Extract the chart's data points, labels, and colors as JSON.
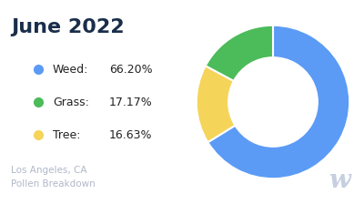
{
  "title": "June 2022",
  "title_color": "#1a2e4a",
  "subtitle": "Los Angeles, CA\nPollen Breakdown",
  "subtitle_color": "#b0b8c8",
  "watermark": "w",
  "watermark_color": "#c5cfe0",
  "slices": [
    66.2,
    16.63,
    17.17
  ],
  "labels": [
    "Weed",
    "Grass",
    "Tree"
  ],
  "percentages": [
    "66.20%",
    "17.17%",
    "16.63%"
  ],
  "colors": [
    "#5B9BF5",
    "#F5D45A",
    "#4CBB5A"
  ],
  "background_color": "#ffffff",
  "legend_dot_colors": [
    "#5B9BF5",
    "#4CBB5A",
    "#F5D45A"
  ],
  "startangle": 90,
  "donut_width": 0.42
}
